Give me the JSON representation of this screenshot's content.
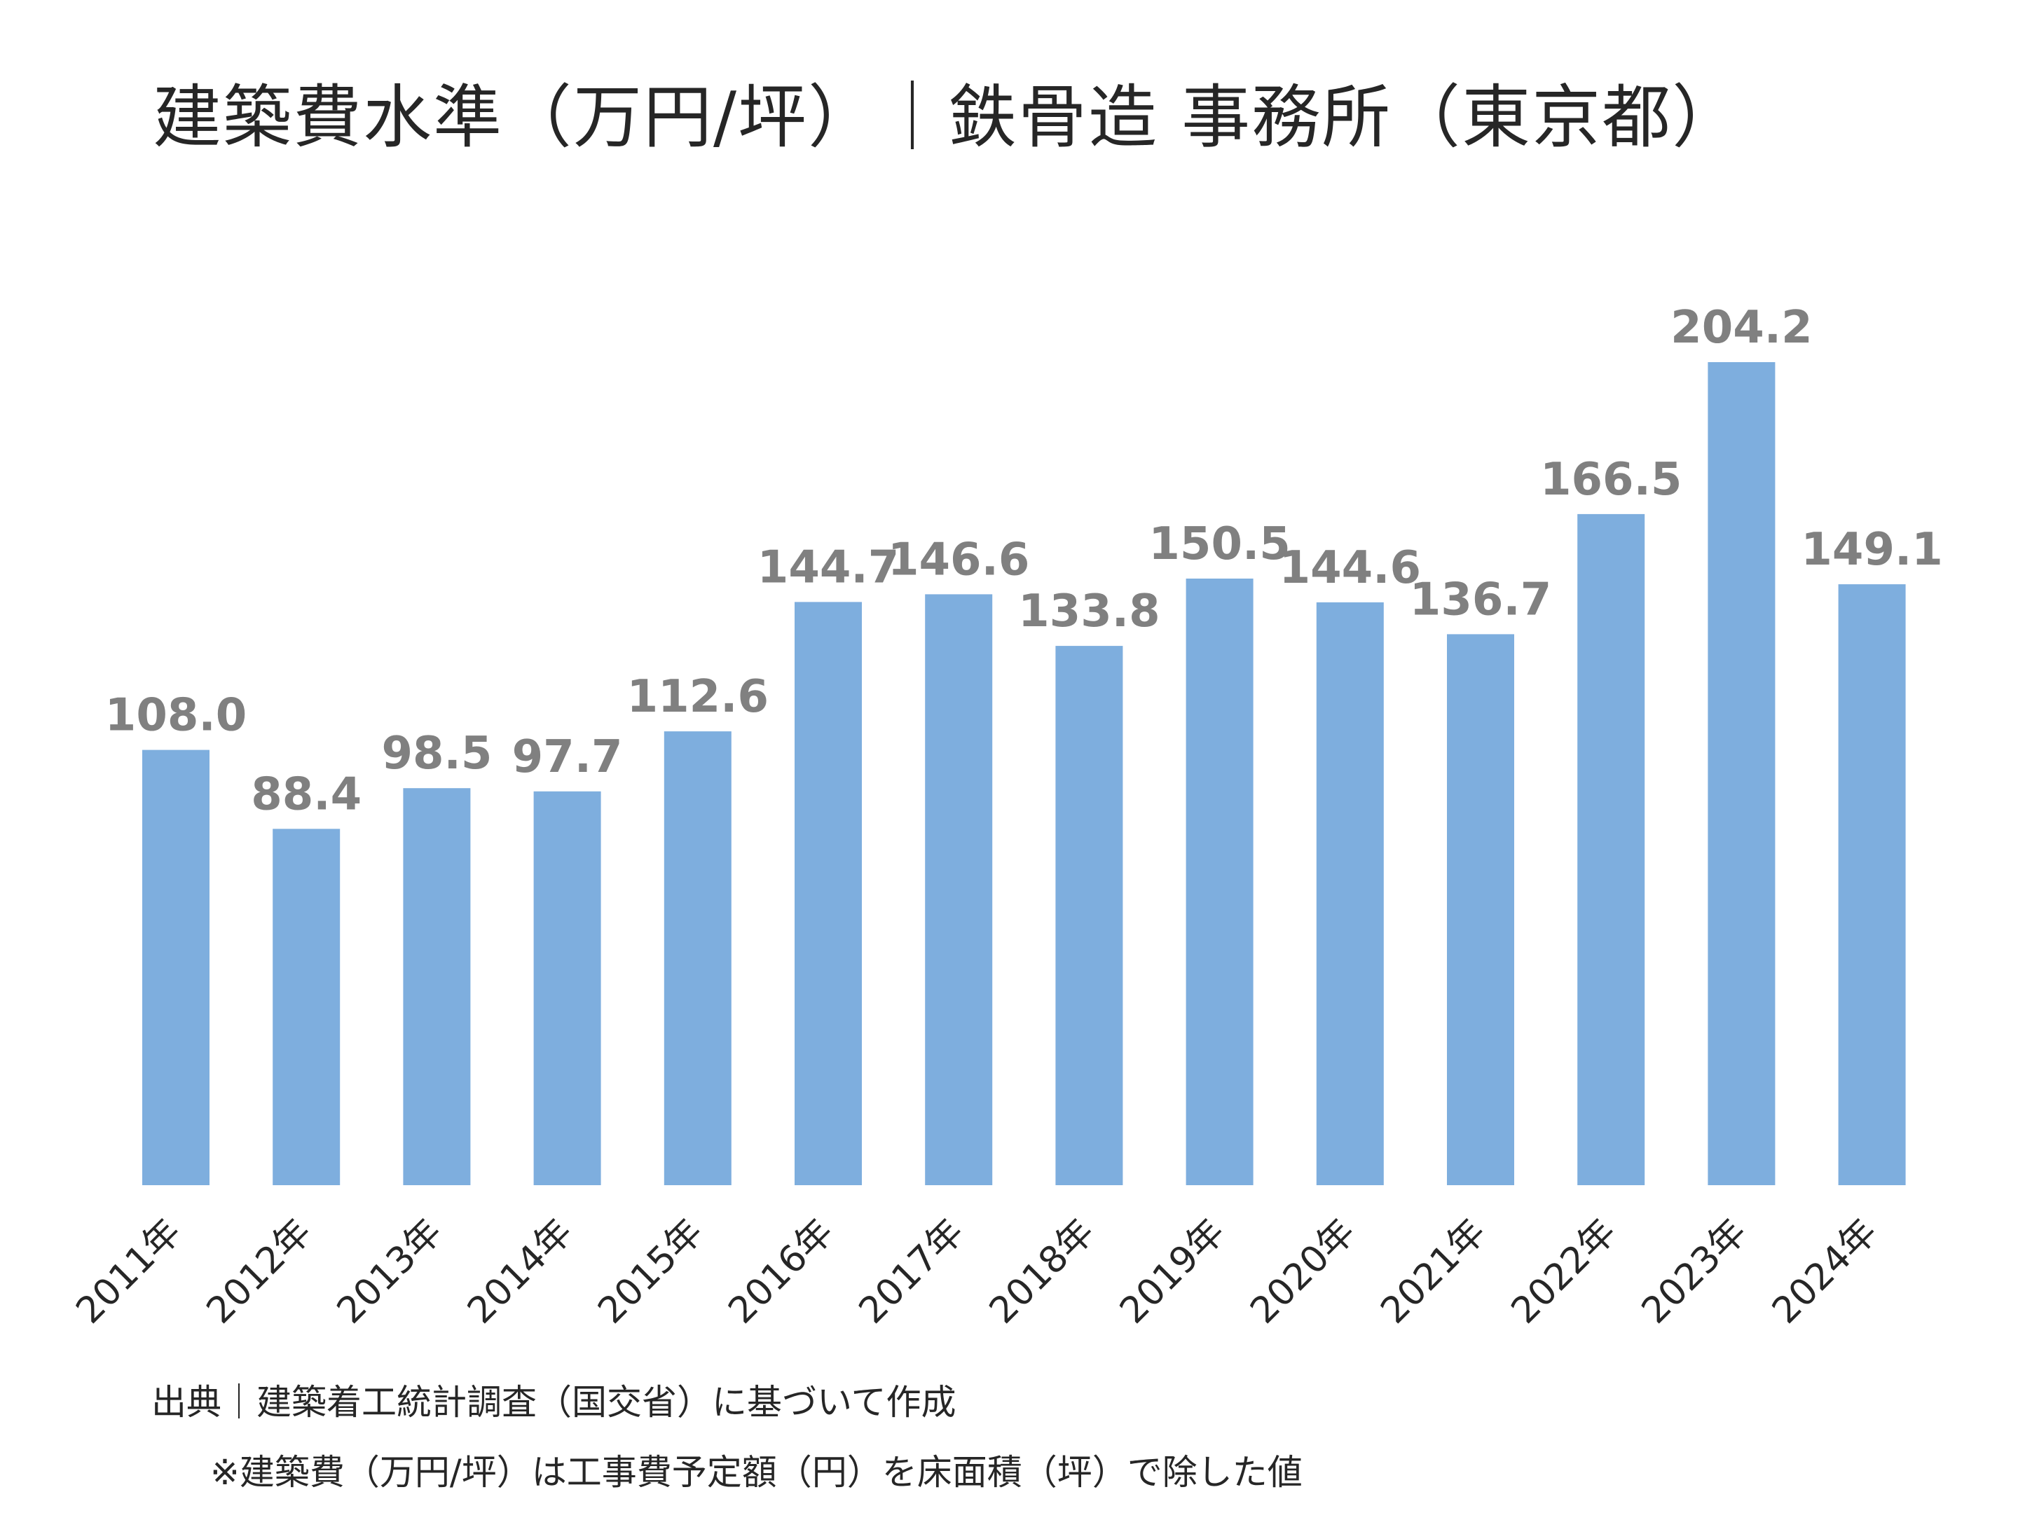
{
  "title": "建築費水準（万円/坪）｜鉄骨造 事務所（東京都）",
  "notes": {
    "source": "出典｜建築着工統計調査（国交省）に基づいて作成",
    "remark": "※建築費（万円/坪）は工事費予定額（円）を床面積（坪）で除した値"
  },
  "colors": {
    "bar": "#7EAEDE",
    "data_label": "#808080",
    "axis_text": "#262626"
  },
  "chart_data": {
    "type": "bar",
    "categories": [
      "2011年",
      "2012年",
      "2013年",
      "2014年",
      "2015年",
      "2016年",
      "2017年",
      "2018年",
      "2019年",
      "2020年",
      "2021年",
      "2022年",
      "2023年",
      "2024年"
    ],
    "values": [
      108.0,
      88.4,
      98.5,
      97.7,
      112.6,
      144.7,
      146.6,
      133.8,
      150.5,
      144.6,
      136.7,
      166.5,
      204.2,
      149.1
    ],
    "value_labels": [
      "108.0",
      "88.4",
      "98.5",
      "97.7",
      "112.6",
      "144.7",
      "146.6",
      "133.8",
      "150.5",
      "144.6",
      "136.7",
      "166.5",
      "204.2",
      "149.1"
    ],
    "title": "建築費水準（万円/坪）｜鉄骨造 事務所（東京都）",
    "xlabel": "",
    "ylabel": "",
    "ylim": [
      0,
      204.2
    ],
    "grid": false,
    "legend": false
  }
}
